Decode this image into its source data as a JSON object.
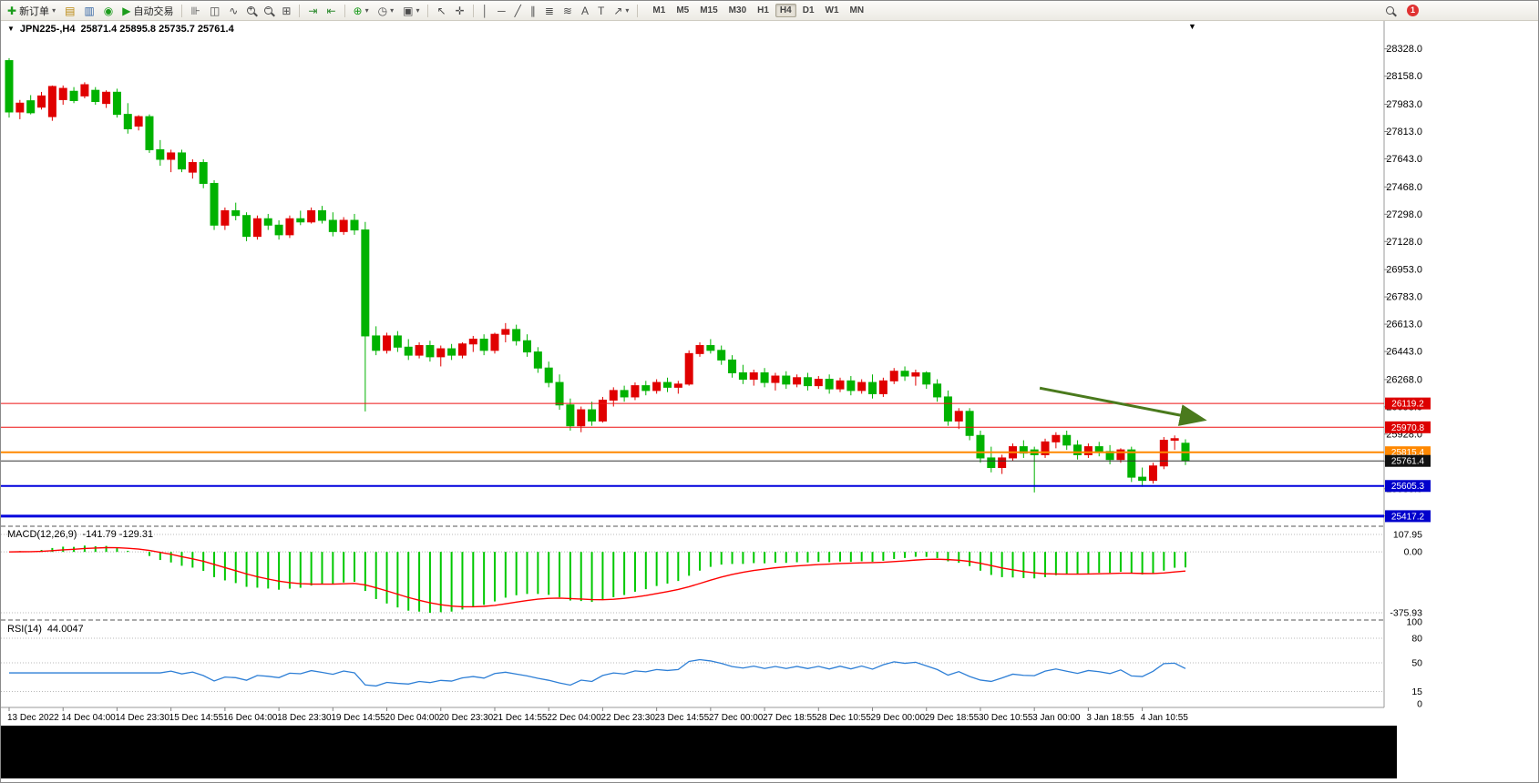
{
  "toolbar": {
    "items": [
      {
        "type": "labeled",
        "name": "new-order-button",
        "glyph": "✚",
        "color": "#1c9c1c",
        "label": "新订单",
        "dropdown": true
      },
      {
        "type": "icon",
        "name": "chart-window-icon",
        "glyph": "▤",
        "color": "#b8860b"
      },
      {
        "type": "icon",
        "name": "profiles-icon",
        "glyph": "▥",
        "color": "#3465a4"
      },
      {
        "type": "icon",
        "name": "data-window-icon",
        "glyph": "◉",
        "color": "#1c9c1c"
      },
      {
        "type": "labeled",
        "name": "autotrading-button",
        "glyph": "▶",
        "color": "#1c9c1c",
        "label": "自动交易"
      },
      {
        "type": "sep"
      },
      {
        "type": "icon",
        "name": "bar-chart-type-button",
        "glyph": "⊪"
      },
      {
        "type": "icon",
        "name": "candlestick-type-button",
        "glyph": "◫"
      },
      {
        "type": "icon",
        "name": "line-chart-type-button",
        "glyph": "∿"
      },
      {
        "type": "lens",
        "name": "zoom-in-button",
        "sub": "+"
      },
      {
        "type": "lens",
        "name": "zoom-out-button",
        "sub": "−"
      },
      {
        "type": "icon",
        "name": "tile-windows-button",
        "glyph": "⊞"
      },
      {
        "type": "sep"
      },
      {
        "type": "icon",
        "name": "auto-scroll-button",
        "glyph": "⇥",
        "color": "#2e8b2e"
      },
      {
        "type": "icon",
        "name": "chart-shift-button",
        "glyph": "⇤",
        "color": "#2e8b2e"
      },
      {
        "type": "sep"
      },
      {
        "type": "icon",
        "name": "indicators-button",
        "glyph": "⊕",
        "color": "#1c9c1c",
        "dropdown": true
      },
      {
        "type": "icon",
        "name": "periods-button",
        "glyph": "◷",
        "dropdown": true
      },
      {
        "type": "icon",
        "name": "templates-button",
        "glyph": "▣",
        "dropdown": true
      },
      {
        "type": "sep"
      },
      {
        "type": "icon",
        "name": "cursor-button",
        "glyph": "↖"
      },
      {
        "type": "icon",
        "name": "crosshair-button",
        "glyph": "✛"
      },
      {
        "type": "sep"
      },
      {
        "type": "icon",
        "name": "vertical-line-button",
        "glyph": "│"
      },
      {
        "type": "icon",
        "name": "horizontal-line-button",
        "glyph": "─"
      },
      {
        "type": "icon",
        "name": "trendline-button",
        "glyph": "╱"
      },
      {
        "type": "icon",
        "name": "channel-button",
        "glyph": "∥"
      },
      {
        "type": "icon",
        "name": "fibonacci-button",
        "glyph": "≣"
      },
      {
        "type": "icon",
        "name": "shapes-button",
        "glyph": "≋"
      },
      {
        "type": "icon",
        "name": "text-button",
        "glyph": "A"
      },
      {
        "type": "icon",
        "name": "text-label-button",
        "glyph": "T"
      },
      {
        "type": "icon",
        "name": "arrows-button",
        "glyph": "↗",
        "dropdown": true
      },
      {
        "type": "sep"
      }
    ],
    "timeframes": [
      "M1",
      "M5",
      "M15",
      "M30",
      "H1",
      "H4",
      "D1",
      "W1",
      "MN"
    ],
    "active_timeframe": "H4",
    "notification_count": "1"
  },
  "chart_header": {
    "collapse_glyph": "▼",
    "menu_glyph": "▼",
    "symbol_period": "JPN225-,H4",
    "ohlc": "25871.4 25895.8 25735.7 25761.4"
  },
  "chart_data": [
    {
      "type": "candlestick",
      "symbol": "JPN225-",
      "timeframe": "H4",
      "up_color": "#e00000",
      "down_color": "#00b200",
      "y_range": [
        25360,
        28400
      ],
      "y_ticks": [
        28328.0,
        28158.0,
        27983.0,
        27813.0,
        27643.0,
        27468.0,
        27298.0,
        27128.0,
        26953.0,
        26783.0,
        26613.0,
        26443.0,
        26268.0,
        26098.0,
        25928.0,
        25758.0,
        25588.0,
        25418.0
      ],
      "label_step": 5,
      "x_labels": [
        "13 Dec 2022",
        "14 Dec 04:00",
        "14 Dec 23:30",
        "15 Dec 14:55",
        "16 Dec 04:00",
        "18 Dec 23:30",
        "19 Dec 14:55",
        "20 Dec 04:00",
        "20 Dec 23:30",
        "21 Dec 14:55",
        "22 Dec 04:00",
        "22 Dec 23:30",
        "23 Dec 14:55",
        "27 Dec 00:00",
        "27 Dec 18:55",
        "28 Dec 10:55",
        "29 Dec 00:00",
        "29 Dec 18:55",
        "30 Dec 10:55",
        "3 Jan 00:00",
        "3 Jan 18:55",
        "4 Jan 10:55"
      ],
      "h_lines": [
        {
          "name": "resistance-line-1",
          "price": 26119.2,
          "label": "26119.2",
          "color": "#ee1111",
          "badge_bg": "#dd0000",
          "width": 1
        },
        {
          "name": "resistance-line-2",
          "price": 25970.8,
          "label": "25970.8",
          "color": "#ee1111",
          "badge_bg": "#dd0000",
          "width": 1
        },
        {
          "name": "orange-level-line",
          "price": 25815.4,
          "label": "25815.4",
          "color": "#ff8800",
          "badge_bg": "#ff8800",
          "width": 2
        },
        {
          "name": "current-price-line",
          "price": 25761.4,
          "label": "25761.4",
          "color": "#333333",
          "badge_bg": "#111111",
          "width": 1
        },
        {
          "name": "support-line-blue-1",
          "price": 25605.3,
          "label": "25605.3",
          "color": "#0000dd",
          "badge_bg": "#0000cc",
          "width": 2
        },
        {
          "name": "support-line-blue-2",
          "price": 25417.2,
          "label": "25417.2",
          "color": "#0000dd",
          "badge_bg": "#0000cc",
          "width": 3
        }
      ],
      "annotations": [
        {
          "type": "arrow",
          "from_index": 95.5,
          "from_price": 26215,
          "to_index": 110.5,
          "to_price": 26020,
          "color": "#4a7a1d"
        }
      ],
      "candles": [
        [
          28255,
          28270,
          27900,
          27935
        ],
        [
          27935,
          28010,
          27890,
          27990
        ],
        [
          28005,
          28040,
          27920,
          27930
        ],
        [
          27965,
          28060,
          27950,
          28035
        ],
        [
          27906,
          28100,
          27880,
          28094
        ],
        [
          28012,
          28100,
          27980,
          28082
        ],
        [
          28064,
          28090,
          27990,
          28006
        ],
        [
          28035,
          28120,
          28020,
          28105
        ],
        [
          28070,
          28090,
          27980,
          28000
        ],
        [
          27988,
          28070,
          27960,
          28058
        ],
        [
          28058,
          28080,
          27900,
          27920
        ],
        [
          27920,
          27990,
          27800,
          27830
        ],
        [
          27847,
          27915,
          27820,
          27906
        ],
        [
          27906,
          27920,
          27680,
          27700
        ],
        [
          27700,
          27760,
          27600,
          27640
        ],
        [
          27640,
          27700,
          27560,
          27680
        ],
        [
          27680,
          27700,
          27560,
          27580
        ],
        [
          27560,
          27640,
          27520,
          27620
        ],
        [
          27620,
          27640,
          27460,
          27490
        ],
        [
          27490,
          27510,
          27200,
          27230
        ],
        [
          27230,
          27340,
          27200,
          27320
        ],
        [
          27320,
          27370,
          27260,
          27290
        ],
        [
          27290,
          27310,
          27130,
          27160
        ],
        [
          27160,
          27290,
          27140,
          27270
        ],
        [
          27270,
          27300,
          27200,
          27230
        ],
        [
          27230,
          27260,
          27140,
          27170
        ],
        [
          27170,
          27290,
          27150,
          27270
        ],
        [
          27270,
          27320,
          27230,
          27250
        ],
        [
          27250,
          27340,
          27240,
          27320
        ],
        [
          27320,
          27350,
          27240,
          27260
        ],
        [
          27260,
          27310,
          27160,
          27190
        ],
        [
          27190,
          27280,
          27170,
          27260
        ],
        [
          27260,
          27300,
          27170,
          27200
        ],
        [
          27200,
          27250,
          26070,
          26540
        ],
        [
          26540,
          26600,
          26420,
          26450
        ],
        [
          26450,
          26560,
          26430,
          26540
        ],
        [
          26540,
          26570,
          26440,
          26470
        ],
        [
          26470,
          26520,
          26390,
          26420
        ],
        [
          26420,
          26500,
          26400,
          26480
        ],
        [
          26480,
          26510,
          26380,
          26410
        ],
        [
          26410,
          26480,
          26350,
          26460
        ],
        [
          26460,
          26490,
          26390,
          26420
        ],
        [
          26420,
          26500,
          26400,
          26490
        ],
        [
          26490,
          26540,
          26440,
          26520
        ],
        [
          26520,
          26550,
          26420,
          26450
        ],
        [
          26450,
          26560,
          26430,
          26550
        ],
        [
          26550,
          26620,
          26500,
          26580
        ],
        [
          26580,
          26610,
          26480,
          26510
        ],
        [
          26510,
          26550,
          26410,
          26440
        ],
        [
          26440,
          26470,
          26310,
          26340
        ],
        [
          26340,
          26380,
          26220,
          26250
        ],
        [
          26250,
          26300,
          26080,
          26110
        ],
        [
          26110,
          26150,
          25950,
          25980
        ],
        [
          25980,
          26100,
          25940,
          26080
        ],
        [
          26080,
          26130,
          25980,
          26010
        ],
        [
          26010,
          26160,
          26000,
          26140
        ],
        [
          26140,
          26220,
          26100,
          26200
        ],
        [
          26200,
          26230,
          26130,
          26160
        ],
        [
          26160,
          26250,
          26140,
          26230
        ],
        [
          26230,
          26260,
          26170,
          26200
        ],
        [
          26200,
          26270,
          26180,
          26250
        ],
        [
          26250,
          26280,
          26190,
          26220
        ],
        [
          26220,
          26260,
          26180,
          26240
        ],
        [
          26240,
          26450,
          26230,
          26430
        ],
        [
          26430,
          26500,
          26410,
          26480
        ],
        [
          26480,
          26520,
          26430,
          26450
        ],
        [
          26450,
          26480,
          26360,
          26390
        ],
        [
          26390,
          26420,
          26280,
          26310
        ],
        [
          26310,
          26360,
          26240,
          26270
        ],
        [
          26270,
          26330,
          26230,
          26310
        ],
        [
          26310,
          26340,
          26220,
          26250
        ],
        [
          26250,
          26310,
          26200,
          26290
        ],
        [
          26290,
          26320,
          26210,
          26240
        ],
        [
          26240,
          26300,
          26220,
          26280
        ],
        [
          26280,
          26310,
          26200,
          26230
        ],
        [
          26230,
          26290,
          26210,
          26270
        ],
        [
          26270,
          26300,
          26180,
          26210
        ],
        [
          26210,
          26280,
          26190,
          26260
        ],
        [
          26260,
          26290,
          26170,
          26200
        ],
        [
          26200,
          26270,
          26180,
          26250
        ],
        [
          26250,
          26300,
          26150,
          26180
        ],
        [
          26180,
          26280,
          26160,
          26260
        ],
        [
          26260,
          26340,
          26240,
          26320
        ],
        [
          26320,
          26350,
          26260,
          26290
        ],
        [
          26290,
          26330,
          26230,
          26310
        ],
        [
          26310,
          26320,
          26210,
          26240
        ],
        [
          26240,
          26270,
          26130,
          26160
        ],
        [
          26160,
          26200,
          25980,
          26010
        ],
        [
          26010,
          26090,
          25960,
          26070
        ],
        [
          26070,
          26090,
          25890,
          25920
        ],
        [
          25920,
          25950,
          25750,
          25780
        ],
        [
          25780,
          25850,
          25690,
          25720
        ],
        [
          25720,
          25800,
          25680,
          25780
        ],
        [
          25780,
          25870,
          25760,
          25850
        ],
        [
          25850,
          25890,
          25780,
          25810
        ],
        [
          25830,
          25850,
          25565,
          25800
        ],
        [
          25800,
          25900,
          25780,
          25880
        ],
        [
          25880,
          25940,
          25840,
          25920
        ],
        [
          25920,
          25950,
          25830,
          25860
        ],
        [
          25860,
          25890,
          25770,
          25800
        ],
        [
          25800,
          25870,
          25780,
          25850
        ],
        [
          25850,
          25880,
          25790,
          25820
        ],
        [
          25820,
          25860,
          25740,
          25770
        ],
        [
          25770,
          25840,
          25750,
          25830
        ],
        [
          25830,
          25850,
          25630,
          25660
        ],
        [
          25660,
          25720,
          25600,
          25640
        ],
        [
          25640,
          25750,
          25620,
          25730
        ],
        [
          25730,
          25910,
          25710,
          25890
        ],
        [
          25890,
          25920,
          25830,
          25900
        ],
        [
          25871.4,
          25895.8,
          25735.7,
          25761.4
        ]
      ]
    },
    {
      "type": "macd",
      "label": "MACD(12,26,9)",
      "values_label": "-141.79 -129.31",
      "params": [
        12,
        26,
        9
      ],
      "axis_labels": [
        "107.95",
        "0.00",
        "-375.93"
      ],
      "axis_values": [
        107.95,
        0,
        -375.93
      ],
      "histogram_color": "#00c800",
      "signal_color": "#ff0000"
    },
    {
      "type": "rsi",
      "label": "RSI(14)",
      "value_label": "44.0047",
      "period": 14,
      "levels": [
        80,
        50,
        15
      ],
      "axis_labels": [
        "100",
        "80",
        "50",
        "15",
        "0"
      ],
      "axis_values": [
        100,
        80,
        50,
        15,
        0
      ],
      "line_color": "#2e7fd6"
    }
  ]
}
